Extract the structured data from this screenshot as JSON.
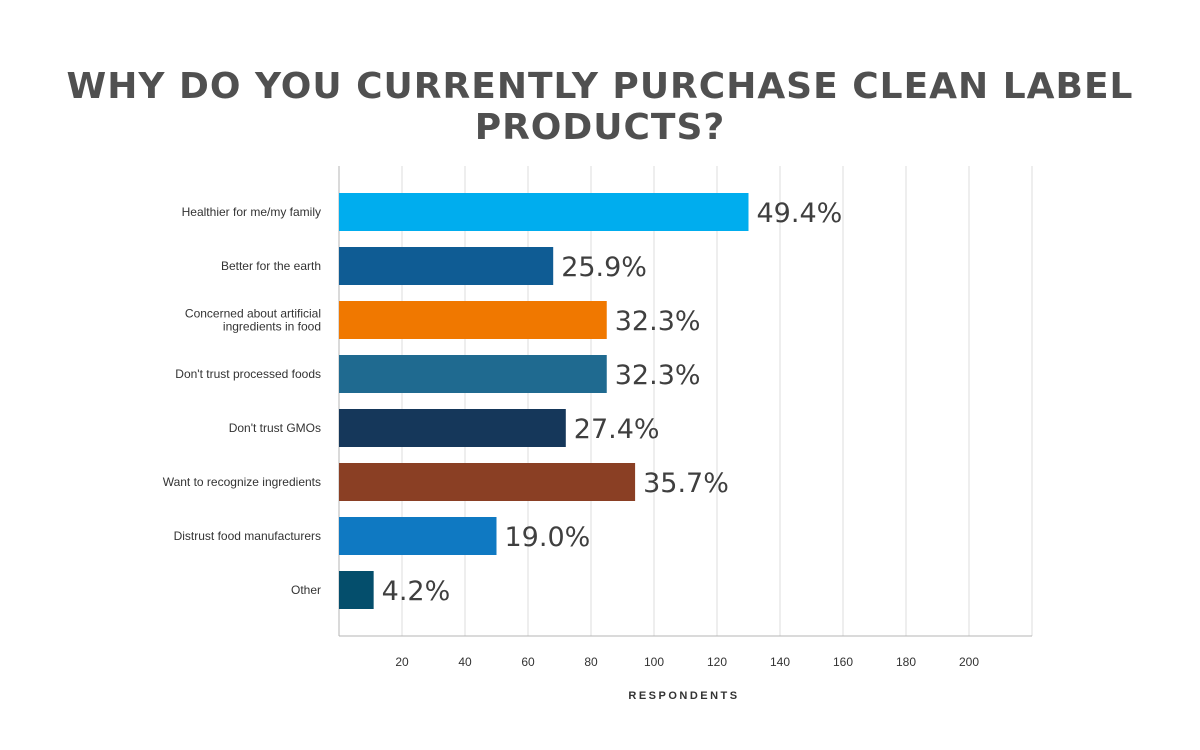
{
  "chart_data": {
    "type": "bar",
    "orientation": "horizontal",
    "title": "WHY DO YOU CURRENTLY PURCHASE CLEAN LABEL PRODUCTS?",
    "xlabel": "RESPONDENTS",
    "ylabel": "",
    "xlim": [
      0,
      220
    ],
    "xticks": [
      20,
      40,
      60,
      80,
      100,
      120,
      140,
      160,
      180,
      200
    ],
    "grid": true,
    "categories": [
      "Healthier for me/my family",
      "Better for the earth",
      "Concerned about artificial ingredients in food",
      "Don't trust processed foods",
      "Don't trust GMOs",
      "Want to recognize ingredients",
      "Distrust food manufacturers",
      "Other"
    ],
    "category_lines": [
      [
        "Healthier for me/my family"
      ],
      [
        "Better for the earth"
      ],
      [
        "Concerned about artificial",
        "ingredients in food"
      ],
      [
        "Don't trust processed foods"
      ],
      [
        "Don't trust GMOs"
      ],
      [
        "Want to recognize ingredients"
      ],
      [
        "Distrust food manufacturers"
      ],
      [
        "Other"
      ]
    ],
    "values": [
      130,
      68,
      85,
      85,
      72,
      94,
      50,
      11
    ],
    "data_labels": [
      "49.4%",
      "25.9%",
      "32.3%",
      "32.3%",
      "27.4%",
      "35.7%",
      "19.0%",
      "4.2%"
    ],
    "colors": [
      "#00adee",
      "#0f5c94",
      "#f07800",
      "#1f6a90",
      "#15375a",
      "#8a3f24",
      "#0f79c2",
      "#044e6c"
    ]
  }
}
